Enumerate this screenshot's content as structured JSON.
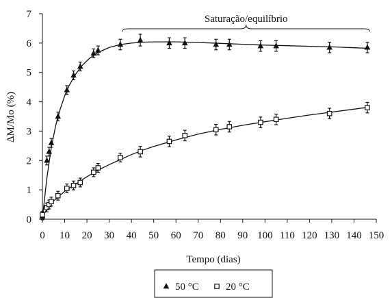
{
  "chart_data": {
    "type": "scatter",
    "title": "",
    "xlabel": "Tempo (dias)",
    "ylabel": "ΔM/Mo (%)",
    "xlim": [
      0,
      150
    ],
    "ylim": [
      0,
      7
    ],
    "x_ticks": [
      "0",
      "10",
      "20",
      "30",
      "40",
      "50",
      "60",
      "70",
      "80",
      "90",
      "100",
      "110",
      "120",
      "130",
      "140",
      "150"
    ],
    "y_ticks": [
      "0",
      "1",
      "2",
      "3",
      "4",
      "5",
      "6",
      "7"
    ],
    "grid": false,
    "legend_position": "bottom-center",
    "annotation": {
      "text": "Saturação/equilíbrio",
      "x_start": 36,
      "x_end": 147
    },
    "series": [
      {
        "name": "50 °C",
        "marker": "filled-triangle",
        "color": "#111111",
        "points": [
          {
            "x": 0,
            "y": 0.1,
            "err": 0.12
          },
          {
            "x": 2,
            "y": 2.0,
            "err": 0.15
          },
          {
            "x": 3,
            "y": 2.3,
            "err": 0.15
          },
          {
            "x": 4,
            "y": 2.6,
            "err": 0.15
          },
          {
            "x": 7,
            "y": 3.5,
            "err": 0.15
          },
          {
            "x": 11,
            "y": 4.4,
            "err": 0.15
          },
          {
            "x": 14,
            "y": 4.9,
            "err": 0.15
          },
          {
            "x": 17,
            "y": 5.2,
            "err": 0.15
          },
          {
            "x": 23,
            "y": 5.65,
            "err": 0.15
          },
          {
            "x": 25,
            "y": 5.75,
            "err": 0.15
          },
          {
            "x": 35,
            "y": 5.95,
            "err": 0.18
          },
          {
            "x": 44,
            "y": 6.1,
            "err": 0.2
          },
          {
            "x": 57,
            "y": 6.0,
            "err": 0.18
          },
          {
            "x": 64,
            "y": 6.0,
            "err": 0.18
          },
          {
            "x": 78,
            "y": 5.95,
            "err": 0.18
          },
          {
            "x": 84,
            "y": 5.95,
            "err": 0.18
          },
          {
            "x": 98,
            "y": 5.9,
            "err": 0.18
          },
          {
            "x": 105,
            "y": 5.9,
            "err": 0.18
          },
          {
            "x": 129,
            "y": 5.85,
            "err": 0.18
          },
          {
            "x": 146,
            "y": 5.85,
            "err": 0.18
          }
        ]
      },
      {
        "name": "20 °C",
        "marker": "open-square",
        "color": "#111111",
        "points": [
          {
            "x": 0,
            "y": 0.15,
            "err": 0.12
          },
          {
            "x": 2,
            "y": 0.4,
            "err": 0.15
          },
          {
            "x": 3,
            "y": 0.5,
            "err": 0.15
          },
          {
            "x": 4,
            "y": 0.6,
            "err": 0.15
          },
          {
            "x": 7,
            "y": 0.8,
            "err": 0.15
          },
          {
            "x": 11,
            "y": 1.05,
            "err": 0.15
          },
          {
            "x": 14,
            "y": 1.15,
            "err": 0.15
          },
          {
            "x": 17,
            "y": 1.25,
            "err": 0.15
          },
          {
            "x": 23,
            "y": 1.6,
            "err": 0.15
          },
          {
            "x": 25,
            "y": 1.75,
            "err": 0.15
          },
          {
            "x": 35,
            "y": 2.1,
            "err": 0.15
          },
          {
            "x": 44,
            "y": 2.3,
            "err": 0.18
          },
          {
            "x": 57,
            "y": 2.65,
            "err": 0.18
          },
          {
            "x": 64,
            "y": 2.85,
            "err": 0.18
          },
          {
            "x": 78,
            "y": 3.05,
            "err": 0.18
          },
          {
            "x": 84,
            "y": 3.15,
            "err": 0.18
          },
          {
            "x": 98,
            "y": 3.3,
            "err": 0.18
          },
          {
            "x": 105,
            "y": 3.4,
            "err": 0.18
          },
          {
            "x": 129,
            "y": 3.6,
            "err": 0.18
          },
          {
            "x": 146,
            "y": 3.8,
            "err": 0.18
          }
        ],
        "fit_curve": [
          [
            0,
            0.05
          ],
          [
            2,
            0.35
          ],
          [
            5,
            0.62
          ],
          [
            10,
            0.95
          ],
          [
            15,
            1.2
          ],
          [
            20,
            1.45
          ],
          [
            25,
            1.67
          ],
          [
            30,
            1.86
          ],
          [
            35,
            2.03
          ],
          [
            40,
            2.2
          ],
          [
            45,
            2.35
          ],
          [
            50,
            2.48
          ],
          [
            60,
            2.7
          ],
          [
            70,
            2.9
          ],
          [
            80,
            3.06
          ],
          [
            90,
            3.2
          ],
          [
            100,
            3.32
          ],
          [
            110,
            3.44
          ],
          [
            120,
            3.55
          ],
          [
            130,
            3.65
          ],
          [
            140,
            3.75
          ],
          [
            147,
            3.82
          ]
        ]
      }
    ],
    "fit_curve_50": [
      [
        0,
        0.05
      ],
      [
        2,
        1.4
      ],
      [
        4,
        2.45
      ],
      [
        6,
        3.2
      ],
      [
        8,
        3.75
      ],
      [
        10,
        4.2
      ],
      [
        12,
        4.55
      ],
      [
        15,
        4.95
      ],
      [
        18,
        5.25
      ],
      [
        21,
        5.47
      ],
      [
        25,
        5.68
      ],
      [
        30,
        5.85
      ],
      [
        35,
        5.95
      ],
      [
        40,
        6.0
      ],
      [
        45,
        6.03
      ],
      [
        50,
        6.04
      ],
      [
        60,
        6.04
      ],
      [
        70,
        6.02
      ],
      [
        80,
        5.99
      ],
      [
        90,
        5.96
      ],
      [
        100,
        5.93
      ],
      [
        110,
        5.91
      ],
      [
        120,
        5.89
      ],
      [
        130,
        5.87
      ],
      [
        140,
        5.84
      ],
      [
        147,
        5.82
      ]
    ]
  }
}
